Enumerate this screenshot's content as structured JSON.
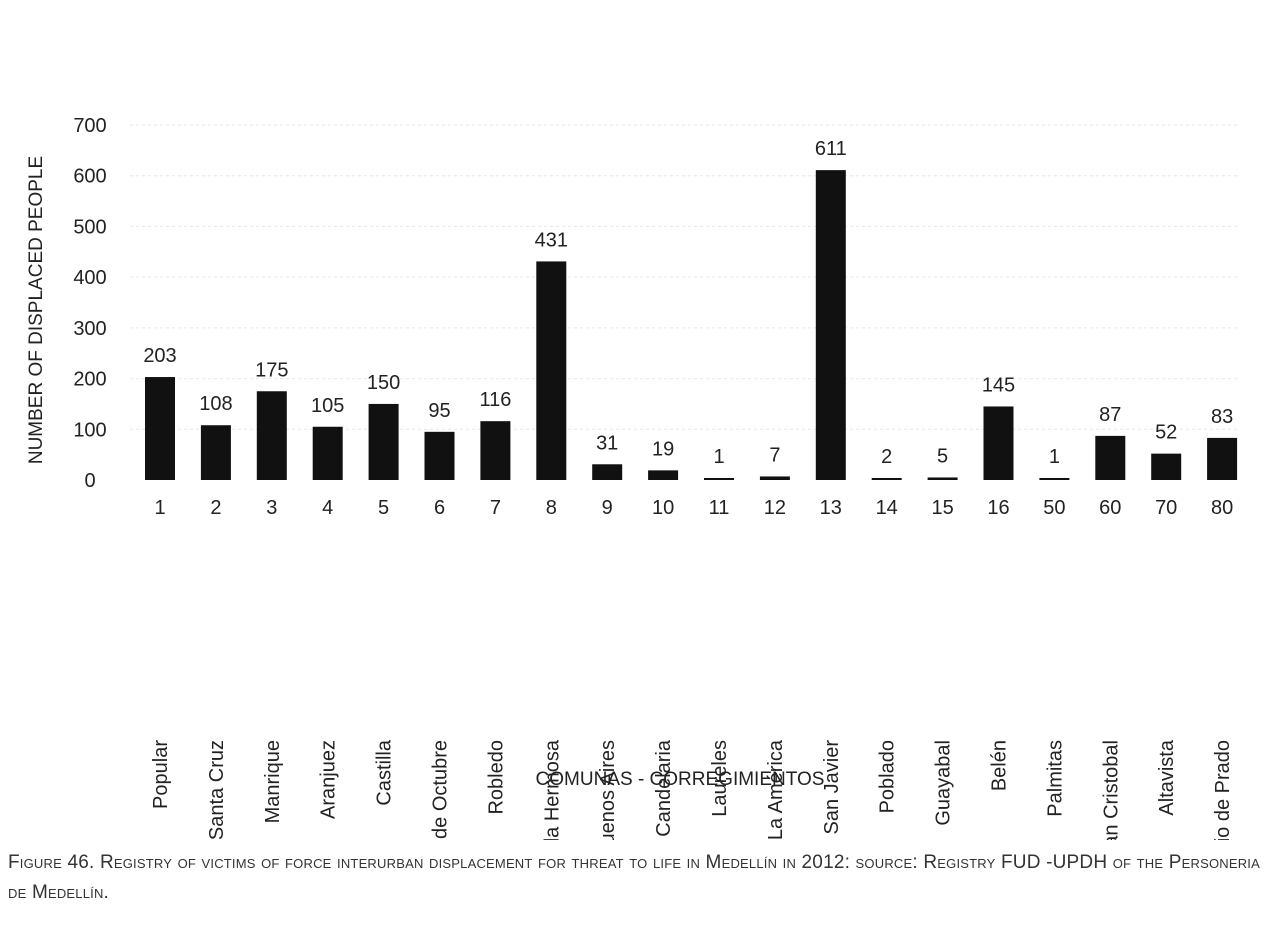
{
  "caption": "Figure 46. Registry of victims of force interurban displacement for threat to life in Medellín in 2012: source: Registry FUD -UPDH of the Personeria de Medellín.",
  "chart_data": {
    "type": "bar",
    "title": "",
    "xlabel": "COMUNAS - CORREGIMIENTOS",
    "ylabel": "NUMBER OF DISPLACED PEOPLE",
    "ylim": [
      0,
      700
    ],
    "yticks": [
      0,
      100,
      200,
      300,
      400,
      500,
      600,
      700
    ],
    "grid": true,
    "categories": [
      "1",
      "2",
      "3",
      "4",
      "5",
      "6",
      "7",
      "8",
      "9",
      "10",
      "11",
      "12",
      "13",
      "14",
      "15",
      "16",
      "50",
      "60",
      "70",
      "80"
    ],
    "category_names": [
      "Popular",
      "Santa Cruz",
      "Manrique",
      "Aranjuez",
      "Castilla",
      "Doce de Octubre",
      "Robledo",
      "Villa Hermosa",
      "Buenos Aires",
      "La Candelaria",
      "Laureles",
      "La América",
      "San Javier",
      "Poblado",
      "Guayabal",
      "Belén",
      "Palmitas",
      "San Cristobal",
      "Altavista",
      "San Antonio de Prado"
    ],
    "values": [
      203,
      108,
      175,
      105,
      150,
      95,
      116,
      431,
      31,
      19,
      1,
      7,
      611,
      2,
      5,
      145,
      1,
      87,
      52,
      83
    ],
    "bar_color": "#111111"
  }
}
